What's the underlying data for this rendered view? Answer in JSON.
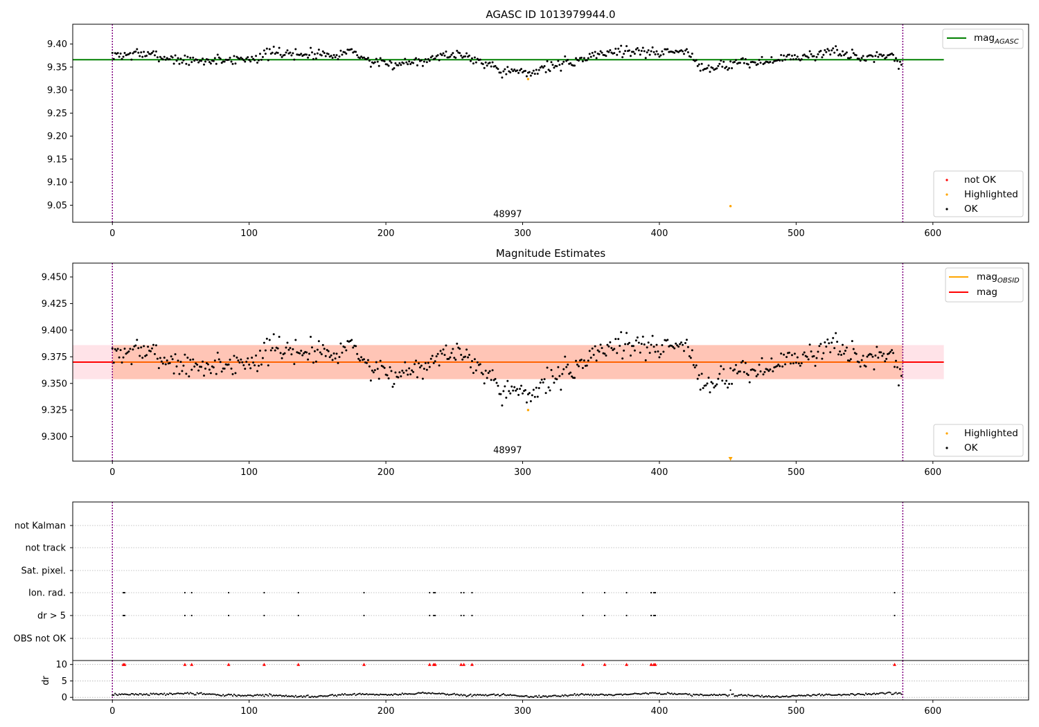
{
  "chart_data": [
    {
      "type": "scatter",
      "title": "AGASC ID 1013979944.0",
      "xlim": [
        -29,
        670
      ],
      "ylim": [
        9.013,
        9.443
      ],
      "xticks": [
        0,
        100,
        200,
        300,
        400,
        500,
        600
      ],
      "yticks": [
        9.05,
        9.1,
        9.15,
        9.2,
        9.25,
        9.3,
        9.35,
        9.4
      ],
      "hlines": [
        {
          "label": "mag",
          "sub": "AGASC",
          "y": 9.366,
          "x": [
            -29,
            608
          ],
          "color": "#008000"
        }
      ],
      "vlines": [
        0,
        578
      ],
      "vline_color": "#800080",
      "annotation": {
        "text": "48997",
        "x": 289,
        "y": 9.026
      },
      "legend_lines": {
        "position": "upper right",
        "entries": [
          {
            "label": "mag",
            "sub": "AGASC",
            "color": "#008000"
          }
        ]
      },
      "legend_points": {
        "position": "lower right",
        "entries": [
          {
            "label": "not OK",
            "color": "#ff0000"
          },
          {
            "label": "Highlighted",
            "color": "#ffa500"
          },
          {
            "label": "OK",
            "color": "#000000"
          }
        ]
      },
      "series": [
        {
          "name": "OK",
          "color": "#000000",
          "kind": "wave",
          "n": 578,
          "base": 9.368,
          "mean_offset": -0.002,
          "noise": 0.0115,
          "seed": 7
        },
        {
          "name": "Highlighted",
          "color": "#ffa500",
          "kind": "points",
          "x": [
            304,
            452
          ],
          "y": [
            9.324,
            9.048
          ]
        }
      ]
    },
    {
      "type": "scatter",
      "title": "Magnitude Estimates",
      "xlim": [
        -29,
        670
      ],
      "ylim": [
        9.277,
        9.463
      ],
      "xticks": [
        0,
        100,
        200,
        300,
        400,
        500,
        600
      ],
      "yticks": [
        9.3,
        9.325,
        9.35,
        9.375,
        9.4,
        9.425,
        9.45
      ],
      "hlines": [
        {
          "label": "mag",
          "y": 9.37,
          "x": [
            -29,
            608
          ],
          "color": "#ff0000"
        }
      ],
      "bands": [
        {
          "y": [
            9.354,
            9.386
          ],
          "x": [
            -29,
            608
          ],
          "color": "#ffc0cb",
          "opacity": 0.45
        },
        {
          "y": [
            9.354,
            9.386
          ],
          "x": [
            0,
            578
          ],
          "color": "#ffa07a",
          "opacity": 0.45
        }
      ],
      "vlines": [
        0,
        578
      ],
      "vline_color": "#800080",
      "annotation": {
        "text": "48997",
        "x": 289,
        "y": 9.285
      },
      "legend_lines": {
        "position": "upper right",
        "entries": [
          {
            "label": "mag",
            "sub": "OBSID",
            "color": "#ffa500"
          },
          {
            "label": "mag",
            "color": "#ff0000"
          }
        ]
      },
      "legend_points": {
        "position": "lower right",
        "entries": [
          {
            "label": "Highlighted",
            "color": "#ffa500"
          },
          {
            "label": "OK",
            "color": "#000000"
          }
        ]
      },
      "series": [
        {
          "name": "OK",
          "color": "#000000",
          "kind": "wave",
          "n": 578,
          "base": 9.368,
          "mean_offset": 0.0,
          "noise": 0.0115,
          "seed": 7
        },
        {
          "name": "Highlighted",
          "color": "#ffa500",
          "kind": "points",
          "x": [
            304
          ],
          "y": [
            9.325
          ]
        },
        {
          "name": "Highlighted",
          "color": "#ffa500",
          "kind": "markers",
          "marker": "triangle-down",
          "x": [
            452
          ],
          "y": [
            9.278
          ]
        }
      ]
    },
    {
      "type": "scatter",
      "title": "",
      "xlim": [
        -29,
        670
      ],
      "categories": [
        "OBS not OK",
        "dr > 5",
        "Ion. rad.",
        "Sat. pixel.",
        "not track",
        "not Kalman"
      ],
      "flag_x": [
        8,
        9,
        53,
        58,
        85,
        111,
        136,
        184,
        232,
        235,
        236,
        255,
        257,
        263,
        344,
        360,
        376,
        394,
        396,
        397,
        572
      ],
      "flags": {
        "dr > 5": "flag_x",
        "Ion. rad.": "flag_x"
      },
      "vlines": [
        0,
        578
      ],
      "vline_color": "#800080"
    },
    {
      "type": "scatter",
      "title": "",
      "ylabel": "dr",
      "xlim": [
        -29,
        670
      ],
      "ylim": [
        -0.8,
        11.2
      ],
      "xticks": [
        0,
        100,
        200,
        300,
        400,
        500,
        600
      ],
      "yticks": [
        0,
        5,
        10
      ],
      "vlines": [
        0,
        578
      ],
      "vline_color": "#800080",
      "series": [
        {
          "name": "dr",
          "color": "#000000",
          "kind": "dr",
          "n": 578,
          "seed": 11
        },
        {
          "name": "dr > 5",
          "color": "#ff0000",
          "kind": "markers",
          "marker": "triangle-up",
          "y_const": 10,
          "x_from": "flag_x"
        }
      ]
    }
  ]
}
